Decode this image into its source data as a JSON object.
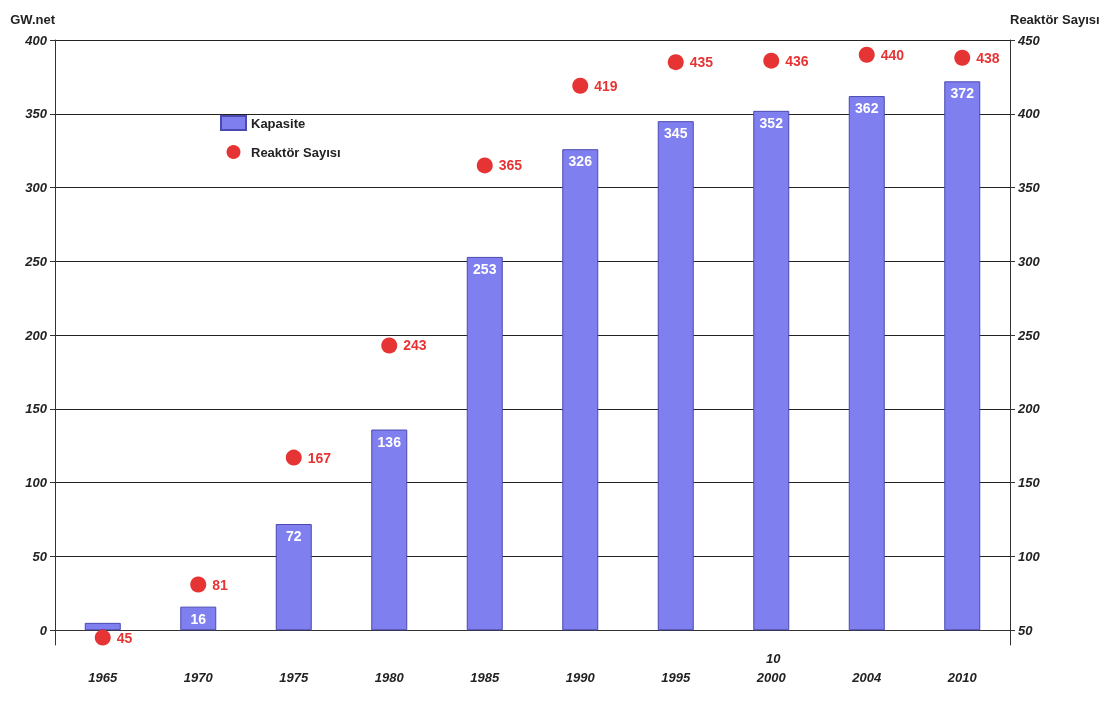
{
  "chart_data": {
    "type": "bar",
    "ylabel": "GW.net",
    "y2label": "Reaktör Sayısı",
    "categories": [
      "1965",
      "1970",
      "1975",
      "1980",
      "1985",
      "1990",
      "1995",
      "2000",
      "2004",
      "2010"
    ],
    "series": [
      {
        "name": "Kapasite",
        "color": "#7f7fef",
        "values": [
          5,
          16,
          72,
          136,
          253,
          326,
          345,
          352,
          362,
          372
        ]
      },
      {
        "name": "Reaktör Sayısı",
        "type": "scatter",
        "axis": "y2",
        "color": "#e00000",
        "values": [
          45,
          81,
          167,
          243,
          365,
          419,
          435,
          436,
          440,
          438
        ]
      }
    ],
    "ylim": [
      -10,
      400
    ],
    "yticks": [
      0,
      50,
      100,
      150,
      200,
      250,
      300,
      350,
      400
    ],
    "y2lim": [
      40,
      450
    ],
    "y2ticks": [
      50,
      100,
      150,
      200,
      250,
      300,
      350,
      400,
      450
    ],
    "data_labels": true,
    "grid": "y",
    "legend": "top left",
    "marker": "circle",
    "annotations": [
      "10"
    ]
  }
}
